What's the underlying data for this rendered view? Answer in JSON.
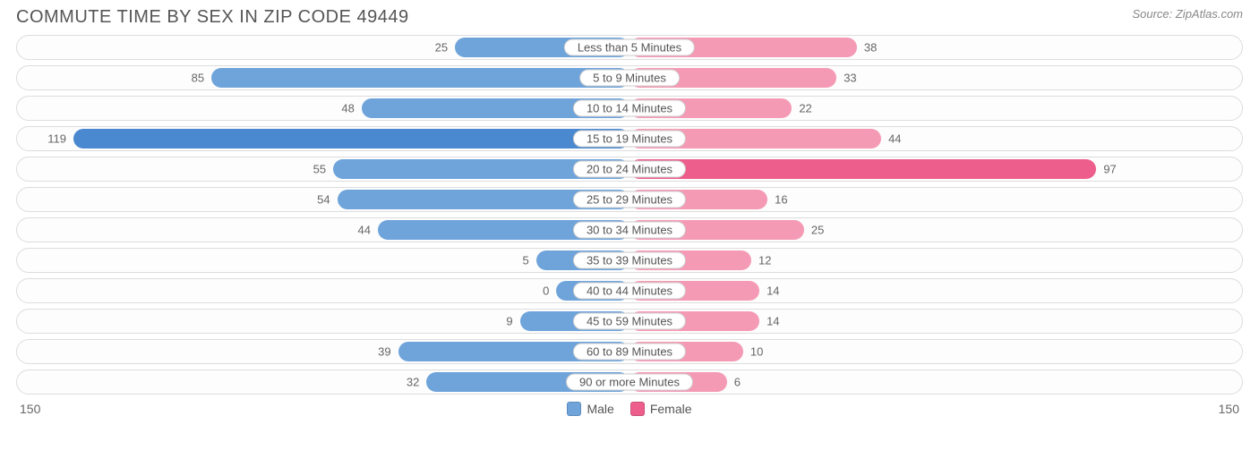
{
  "title": "COMMUTE TIME BY SEX IN ZIP CODE 49449",
  "source": "Source: ZipAtlas.com",
  "chart": {
    "type": "diverging-bar",
    "axis_max": 150,
    "axis_label_left": "150",
    "axis_label_right": "150",
    "colors": {
      "male": "#6fa4db",
      "male_highlight": "#4a89cf",
      "female": "#f59ab5",
      "female_highlight": "#ed5e8c",
      "track_border": "#dddddd",
      "track_bg": "#fdfdfd",
      "text": "#555555",
      "value_text": "#666666"
    },
    "label_fontsize": 13,
    "title_fontsize": 20,
    "legend": [
      {
        "label": "Male",
        "color": "#6fa4db"
      },
      {
        "label": "Female",
        "color": "#ed5e8c"
      }
    ],
    "rows": [
      {
        "category": "Less than 5 Minutes",
        "male": 25,
        "female": 38,
        "male_hl": false,
        "female_hl": false
      },
      {
        "category": "5 to 9 Minutes",
        "male": 85,
        "female": 33,
        "male_hl": false,
        "female_hl": false
      },
      {
        "category": "10 to 14 Minutes",
        "male": 48,
        "female": 22,
        "male_hl": false,
        "female_hl": false
      },
      {
        "category": "15 to 19 Minutes",
        "male": 119,
        "female": 44,
        "male_hl": true,
        "female_hl": false
      },
      {
        "category": "20 to 24 Minutes",
        "male": 55,
        "female": 97,
        "male_hl": false,
        "female_hl": true
      },
      {
        "category": "25 to 29 Minutes",
        "male": 54,
        "female": 16,
        "male_hl": false,
        "female_hl": false
      },
      {
        "category": "30 to 34 Minutes",
        "male": 44,
        "female": 25,
        "male_hl": false,
        "female_hl": false
      },
      {
        "category": "35 to 39 Minutes",
        "male": 5,
        "female": 12,
        "male_hl": false,
        "female_hl": false
      },
      {
        "category": "40 to 44 Minutes",
        "male": 0,
        "female": 14,
        "male_hl": false,
        "female_hl": false
      },
      {
        "category": "45 to 59 Minutes",
        "male": 9,
        "female": 14,
        "male_hl": false,
        "female_hl": false
      },
      {
        "category": "60 to 89 Minutes",
        "male": 39,
        "female": 10,
        "male_hl": false,
        "female_hl": false
      },
      {
        "category": "90 or more Minutes",
        "male": 32,
        "female": 6,
        "male_hl": false,
        "female_hl": false
      }
    ]
  }
}
